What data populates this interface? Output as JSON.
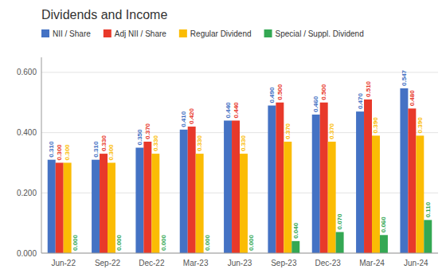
{
  "chart_data": {
    "type": "bar",
    "title": "Dividends and Income",
    "categories": [
      "Jun-22",
      "Sep-22",
      "Dec-22",
      "Mar-23",
      "Jun-23",
      "Sep-23",
      "Dec-23",
      "Mar-24",
      "Jun-24"
    ],
    "series": [
      {
        "name": "NII / Share",
        "color": "#4472C4",
        "values": [
          0.31,
          0.31,
          0.35,
          0.41,
          0.44,
          0.49,
          0.46,
          0.47,
          0.547
        ],
        "value_labels": [
          "0.310",
          "0.310",
          "0.350",
          "0.410",
          "0.440",
          "0.490",
          "0.460",
          "0.470",
          "0.547"
        ]
      },
      {
        "name": "Adj NII / Share",
        "color": "#E8392A",
        "values": [
          0.3,
          0.33,
          0.37,
          0.42,
          0.44,
          0.5,
          0.5,
          0.51,
          0.48
        ],
        "value_labels": [
          "0.300",
          "0.330",
          "0.370",
          "0.420",
          "0.440",
          "0.500",
          "0.500",
          "0.510",
          "0.480"
        ]
      },
      {
        "name": "Regular Dividend",
        "color": "#FBBC04",
        "values": [
          0.3,
          0.3,
          0.33,
          0.33,
          0.33,
          0.37,
          0.37,
          0.39,
          0.39
        ],
        "value_labels": [
          "0.300",
          "0.300",
          "0.330",
          "0.330",
          "0.330",
          "0.370",
          "0.370",
          "0.390",
          "0.390"
        ]
      },
      {
        "name": "Special / Suppl. Dividend",
        "color": "#34A853",
        "values": [
          0.0,
          0.0,
          0.0,
          0.0,
          0.0,
          0.04,
          0.07,
          0.06,
          0.11
        ],
        "value_labels": [
          "0.000",
          "0.000",
          "0.000",
          "0.000",
          "0.000",
          "0.040",
          "0.070",
          "0.060",
          "0.110"
        ]
      }
    ],
    "ylim": [
      0.0,
      0.65
    ],
    "yticks": [
      {
        "value": 0.0,
        "label": "0.000"
      },
      {
        "value": 0.2,
        "label": "0.200"
      },
      {
        "value": 0.4,
        "label": "0.400"
      },
      {
        "value": 0.6,
        "label": "0.600"
      }
    ],
    "grid": true,
    "legend": "top-left",
    "data_labels": true
  }
}
